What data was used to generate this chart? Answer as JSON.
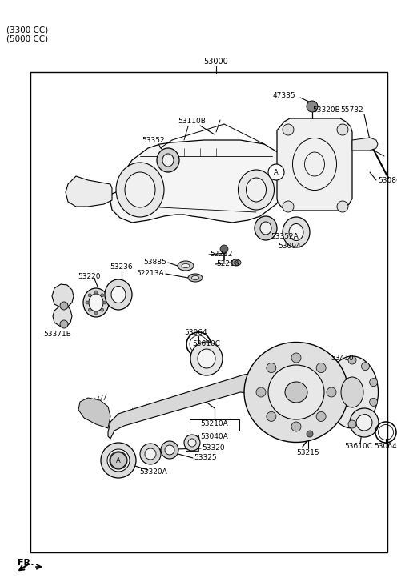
{
  "bg": "#ffffff",
  "lc": "#000000",
  "fig_w": 4.96,
  "fig_h": 7.27,
  "dpi": 100,
  "title": "(3300 CC)\n(5000 CC)",
  "fr": "FR.",
  "part_no": "53000",
  "fs_label": 6.5,
  "fs_title": 7.5
}
